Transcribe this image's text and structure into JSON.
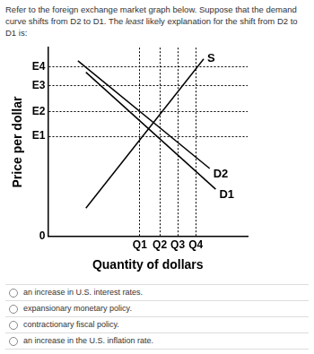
{
  "question": {
    "before": "Refer to the foreign exchange market graph below.  Suppose that the demand curve shifts from D2 to D1. The ",
    "emphasis": "least",
    "after": " likely explanation for the shift from D2 to D1 is:"
  },
  "chart_data": {
    "type": "line",
    "x_label": "Quantity of dollars",
    "y_label": "Price per dollar",
    "series": [
      {
        "name": "S",
        "color": "#000000",
        "x": [
          1.9,
          7.8
        ],
        "values": [
          1.5,
          9.4
        ]
      },
      {
        "name": "D2",
        "color": "#000000",
        "x": [
          1.5,
          8.1
        ],
        "values": [
          9.3,
          3.6
        ]
      },
      {
        "name": "D1",
        "color": "#000000",
        "x": [
          1.9,
          8.4
        ],
        "values": [
          8.7,
          2.5
        ]
      }
    ],
    "xlim": [
      0,
      10
    ],
    "ylim": [
      0,
      10
    ],
    "xticks": [
      {
        "value": 4.6,
        "label": "Q1"
      },
      {
        "value": 5.6,
        "label": "Q2"
      },
      {
        "value": 6.5,
        "label": "Q3"
      },
      {
        "value": 7.4,
        "label": "Q4"
      }
    ],
    "yticks": [
      0,
      {
        "value": 5.3,
        "label": "E1"
      },
      {
        "value": 6.6,
        "label": "E2"
      },
      {
        "value": 8.0,
        "label": "E3"
      },
      {
        "value": 9.0,
        "label": "E4"
      }
    ],
    "grid": true,
    "line_style": "solid"
  },
  "options": [
    "an increase in U.S. interest rates.",
    "expansionary monetary policy.",
    "contractionary fiscal policy.",
    "an increase in the U.S. inflation rate."
  ]
}
